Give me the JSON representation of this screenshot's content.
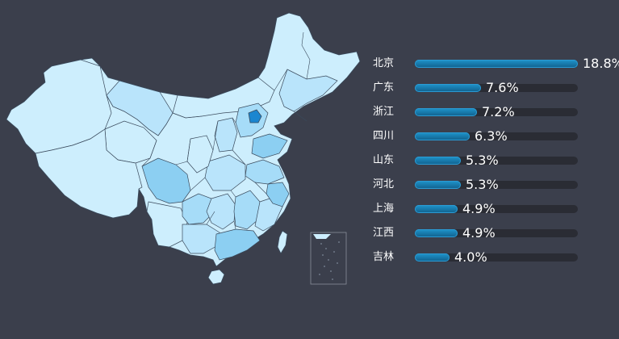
{
  "chart_data": {
    "type": "bar",
    "orientation": "horizontal",
    "categories": [
      "北京",
      "广东",
      "浙江",
      "四川",
      "山东",
      "河北",
      "上海",
      "江西",
      "吉林"
    ],
    "values": [
      18.8,
      7.6,
      7.2,
      6.3,
      5.3,
      5.3,
      4.9,
      4.9,
      4.0
    ],
    "value_labels": [
      "18.8%",
      "7.6%",
      "7.2%",
      "6.3%",
      "5.3%",
      "5.3%",
      "4.9%",
      "4.9%",
      "4.0%"
    ],
    "unit": "%",
    "xlim": [
      0,
      18.8
    ],
    "legend": "none",
    "grid": false
  },
  "map": {
    "type": "choropleth",
    "region": "China provinces",
    "highlight_province": "北京",
    "colors": {
      "lowest": "#cdeefd",
      "low": "#b9e4fb",
      "mid": "#a6dcf8",
      "high": "#8ccff2",
      "highest": "#1b86d0",
      "border": "#3a4a5c",
      "background": "#3b3f4c"
    }
  }
}
